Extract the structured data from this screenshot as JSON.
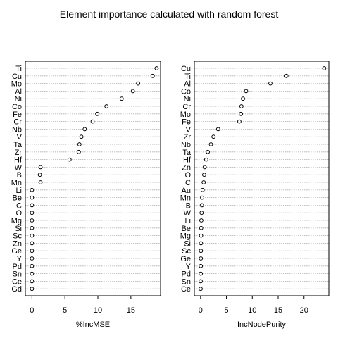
{
  "chart_data": [
    {
      "type": "scatter",
      "title": "Element importance calculated with random forest",
      "xlabel": "%IncMSE",
      "xlim": [
        -1,
        19.5
      ],
      "xticks": [
        0,
        5,
        10,
        15
      ],
      "categories": [
        "Ti",
        "Cu",
        "Mo",
        "Al",
        "Ni",
        "Co",
        "Fe",
        "Cr",
        "Nb",
        "V",
        "Ta",
        "Zr",
        "Hf",
        "W",
        "B",
        "Mn",
        "Li",
        "Be",
        "C",
        "O",
        "Mg",
        "Si",
        "Sc",
        "Zn",
        "Ge",
        "Y",
        "Pd",
        "Sn",
        "Ce",
        "Gd"
      ],
      "values": [
        18.9,
        18.3,
        16.1,
        15.3,
        13.6,
        11.3,
        9.9,
        9.2,
        8.0,
        7.5,
        7.2,
        7.1,
        5.7,
        1.3,
        1.2,
        1.3,
        0,
        0,
        0,
        0,
        0,
        0,
        0,
        0,
        0,
        0,
        0,
        0,
        0,
        0
      ]
    },
    {
      "type": "scatter",
      "xlabel": "IncNodePurity",
      "xlim": [
        -1.2,
        24.8
      ],
      "xticks": [
        0,
        5,
        10,
        15,
        20
      ],
      "categories": [
        "Cu",
        "Ti",
        "Al",
        "Co",
        "Ni",
        "Cr",
        "Mo",
        "Fe",
        "V",
        "Zr",
        "Nb",
        "Ta",
        "Hf",
        "Zn",
        "O",
        "C",
        "Au",
        "Mn",
        "B",
        "W",
        "Li",
        "Be",
        "Mg",
        "Si",
        "Sc",
        "Ge",
        "Y",
        "Pd",
        "Sn",
        "Ce"
      ],
      "values": [
        23.9,
        16.6,
        13.5,
        8.8,
        8.2,
        7.9,
        7.8,
        7.5,
        3.4,
        2.5,
        2.0,
        1.4,
        1.1,
        0.8,
        0.7,
        0.6,
        0.4,
        0.3,
        0.25,
        0.2,
        0.15,
        0.12,
        0.1,
        0.08,
        0.07,
        0.06,
        0.05,
        0.04,
        0.03,
        0.02
      ]
    }
  ]
}
